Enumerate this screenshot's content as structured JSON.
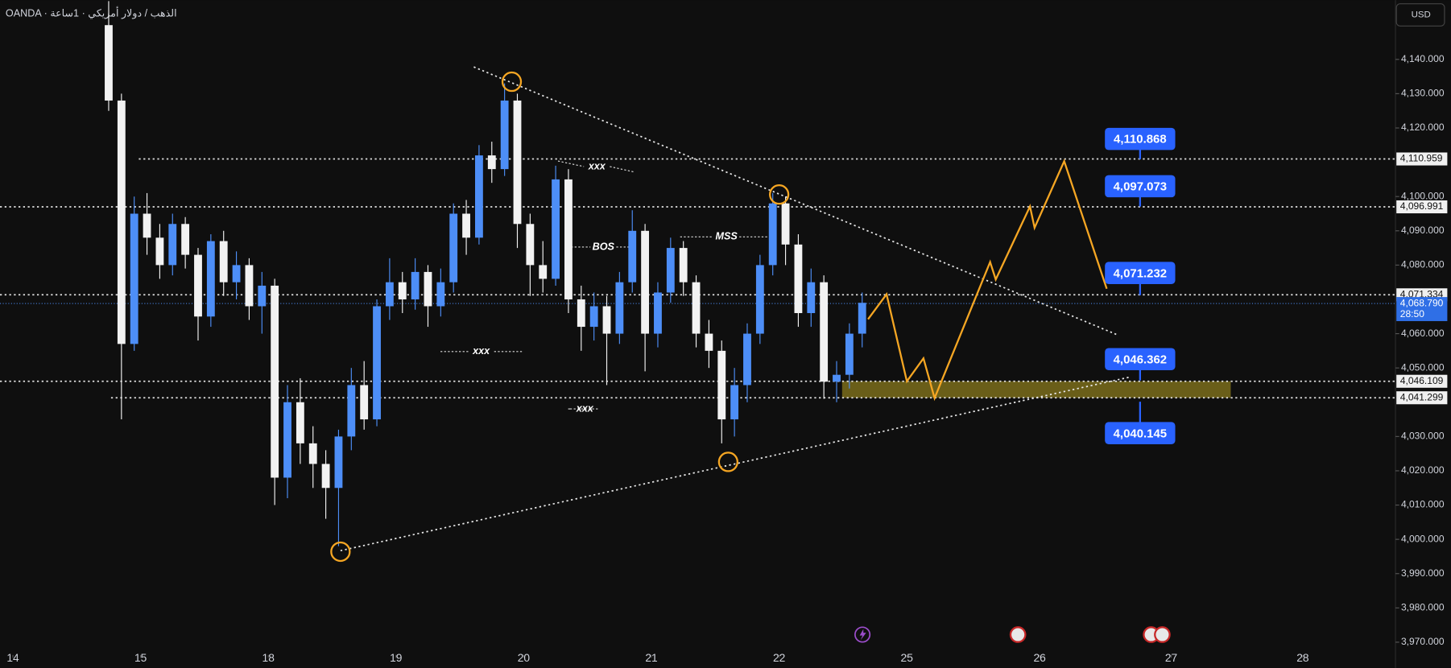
{
  "header": {
    "title": "OANDA · الذهب / دولار أمريكي · 1ساعة",
    "currency": "USD"
  },
  "chart_data": {
    "type": "candlestick",
    "x": [
      0.75,
      0.85,
      0.95,
      1.05,
      1.15,
      1.25,
      1.35,
      1.45,
      1.55,
      1.65,
      1.75,
      1.85,
      1.95,
      2.05,
      2.15,
      2.25,
      2.35,
      2.45,
      2.55,
      2.65,
      2.75,
      2.85,
      2.95,
      3.05,
      3.15,
      3.25,
      3.35,
      3.45,
      3.55,
      3.65,
      3.75,
      3.85,
      3.95,
      4.05,
      4.15,
      4.25,
      4.35,
      4.45,
      4.55,
      4.65,
      4.75,
      4.85,
      4.95,
      5.05,
      5.15,
      5.25,
      5.35,
      5.45,
      5.55,
      5.65,
      5.75,
      5.85,
      5.95,
      6.05,
      6.15,
      6.25,
      6.35,
      6.45,
      6.55,
      6.65
    ],
    "open": [
      4150,
      4128,
      4057,
      4095,
      4088,
      4080,
      4092,
      4083,
      4065,
      4087,
      4075,
      4080,
      4068,
      4074,
      4018,
      4040,
      4028,
      4022,
      4015,
      4030,
      4045,
      4035,
      4068,
      4075,
      4070,
      4078,
      4068,
      4075,
      4095,
      4088,
      4112,
      4108,
      4128,
      4092,
      4080,
      4076,
      4105,
      4070,
      4062,
      4068,
      4060,
      4075,
      4090,
      4060,
      4072,
      4085,
      4075,
      4060,
      4055,
      4035,
      4045,
      4060,
      4080,
      4098,
      4086,
      4066,
      4075,
      4046,
      4048,
      4060
    ],
    "high": [
      4157,
      4130,
      4100,
      4101,
      4092,
      4095,
      4094,
      4085,
      4089,
      4090,
      4084,
      4082,
      4078,
      4076,
      4045,
      4047,
      4033,
      4026,
      4032,
      4050,
      4052,
      4070,
      4082,
      4078,
      4082,
      4080,
      4079,
      4098,
      4099,
      4115,
      4116,
      4133,
      4130,
      4095,
      4087,
      4109,
      4108,
      4074,
      4072,
      4071,
      4078,
      4096,
      4092,
      4075,
      4088,
      4087,
      4077,
      4064,
      4058,
      4050,
      4063,
      4083,
      4101,
      4100,
      4089,
      4079,
      4077,
      4052,
      4063,
      4072
    ],
    "low": [
      4125,
      4035,
      4055,
      4083,
      4076,
      4077,
      4079,
      4058,
      4062,
      4071,
      4070,
      4064,
      4060,
      4010,
      4012,
      4022,
      4015,
      4006,
      3998,
      4026,
      4032,
      4033,
      4064,
      4066,
      4067,
      4062,
      4065,
      4072,
      4083,
      4086,
      4104,
      4106,
      4085,
      4071,
      4072,
      4074,
      4066,
      4055,
      4058,
      4045,
      4057,
      4072,
      4049,
      4056,
      4069,
      4071,
      4056,
      4050,
      4028,
      4030,
      4040,
      4057,
      4077,
      4080,
      4062,
      4062,
      4041,
      4040,
      4044,
      4056
    ],
    "close": [
      4128,
      4057,
      4095,
      4088,
      4080,
      4092,
      4083,
      4065,
      4087,
      4075,
      4080,
      4068,
      4074,
      4018,
      4040,
      4028,
      4022,
      4015,
      4030,
      4045,
      4035,
      4068,
      4075,
      4070,
      4078,
      4068,
      4075,
      4095,
      4088,
      4112,
      4108,
      4128,
      4092,
      4080,
      4076,
      4105,
      4070,
      4062,
      4068,
      4060,
      4075,
      4090,
      4060,
      4072,
      4085,
      4075,
      4060,
      4055,
      4035,
      4045,
      4060,
      4080,
      4098,
      4086,
      4066,
      4075,
      4046,
      4048,
      4060,
      4069
    ],
    "colors": {
      "up": "#4d8ef7",
      "down": "#f2f2f2"
    },
    "xlim": [
      -0.101,
      10.826
    ],
    "xticks": [
      {
        "value": 0,
        "label": "14"
      },
      {
        "value": 1,
        "label": "15"
      },
      {
        "value": 2,
        "label": "18"
      },
      {
        "value": 3,
        "label": "19"
      },
      {
        "value": 4,
        "label": "20"
      },
      {
        "value": 5,
        "label": "21"
      },
      {
        "value": 6,
        "label": "22"
      },
      {
        "value": 7,
        "label": "25"
      },
      {
        "value": 8.04,
        "label": "26"
      },
      {
        "value": 9.07,
        "label": "27"
      },
      {
        "value": 10.1,
        "label": "28"
      }
    ],
    "ylim": [
      3962.5,
      4157.3
    ],
    "yticks": [
      {
        "value": 3970,
        "label": "3,970.000"
      },
      {
        "value": 3980,
        "label": "3,980.000"
      },
      {
        "value": 3990,
        "label": "3,990.000"
      },
      {
        "value": 4000,
        "label": "4,000.000"
      },
      {
        "value": 4010,
        "label": "4,010.000"
      },
      {
        "value": 4020,
        "label": "4,020.000"
      },
      {
        "value": 4030,
        "label": "4,030.000"
      },
      {
        "value": 4050,
        "label": "4,050.000"
      },
      {
        "value": 4060,
        "label": "4,060.000"
      },
      {
        "value": 4080,
        "label": "4,080.000"
      },
      {
        "value": 4090,
        "label": "4,090.000"
      },
      {
        "value": 4100,
        "label": "4,100.000"
      },
      {
        "value": 4120,
        "label": "4,120.000"
      },
      {
        "value": 4130,
        "label": "4,130.000"
      },
      {
        "value": 4140,
        "label": "4,140.000"
      }
    ],
    "levels": [
      {
        "value": 4110.959,
        "label": "4,110.959"
      },
      {
        "value": 4096.991,
        "label": "4,096.991"
      },
      {
        "value": 4071.334,
        "label": "4,071.334"
      },
      {
        "value": 4046.109,
        "label": "4,046.109"
      },
      {
        "value": 4041.299,
        "label": "4,041.299"
      }
    ],
    "last_price": {
      "value": 4068.79,
      "label": "4,068.790",
      "countdown": "28:50"
    },
    "targets": [
      {
        "value": 4110.868,
        "label": "4,110.868"
      },
      {
        "value": 4097.073,
        "label": "4,097.073"
      },
      {
        "value": 4071.232,
        "label": "4,071.232"
      },
      {
        "value": 4046.362,
        "label": "4,046.362"
      },
      {
        "value": 4040.145,
        "label": "4,040.145"
      }
    ],
    "annotations": [
      "xxx",
      "BOS",
      "MSS",
      "xxx",
      "xxx"
    ],
    "projection": {
      "x": [
        6.696,
        6.841,
        7.0,
        7.13,
        7.217,
        7.652,
        7.696,
        7.964,
        8.0,
        8.232,
        8.565
      ],
      "values": [
        4064.2,
        4071.5,
        4046.1,
        4052.8,
        4041.2,
        4080.9,
        4075.8,
        4097.1,
        4090.9,
        4110.3,
        4073.1
      ],
      "color": "#f5a623"
    },
    "trendlines": [
      {
        "x": [
          3.609,
          8.652
        ],
        "values": [
          4137.8,
          4059.6
        ]
      },
      {
        "x": [
          2.565,
          8.754
        ],
        "values": [
          3996.7,
          4047.4
        ]
      }
    ],
    "pivots": {
      "x": [
        3.906,
        6.0,
        5.601,
        2.565
      ],
      "values": [
        4133.5,
        4100.6,
        4022.6,
        3996.4
      ]
    },
    "zone": {
      "x": [
        6.493,
        9.536
      ],
      "values": [
        4041.3,
        4046.1
      ],
      "color": "#8a7a1e"
    }
  }
}
